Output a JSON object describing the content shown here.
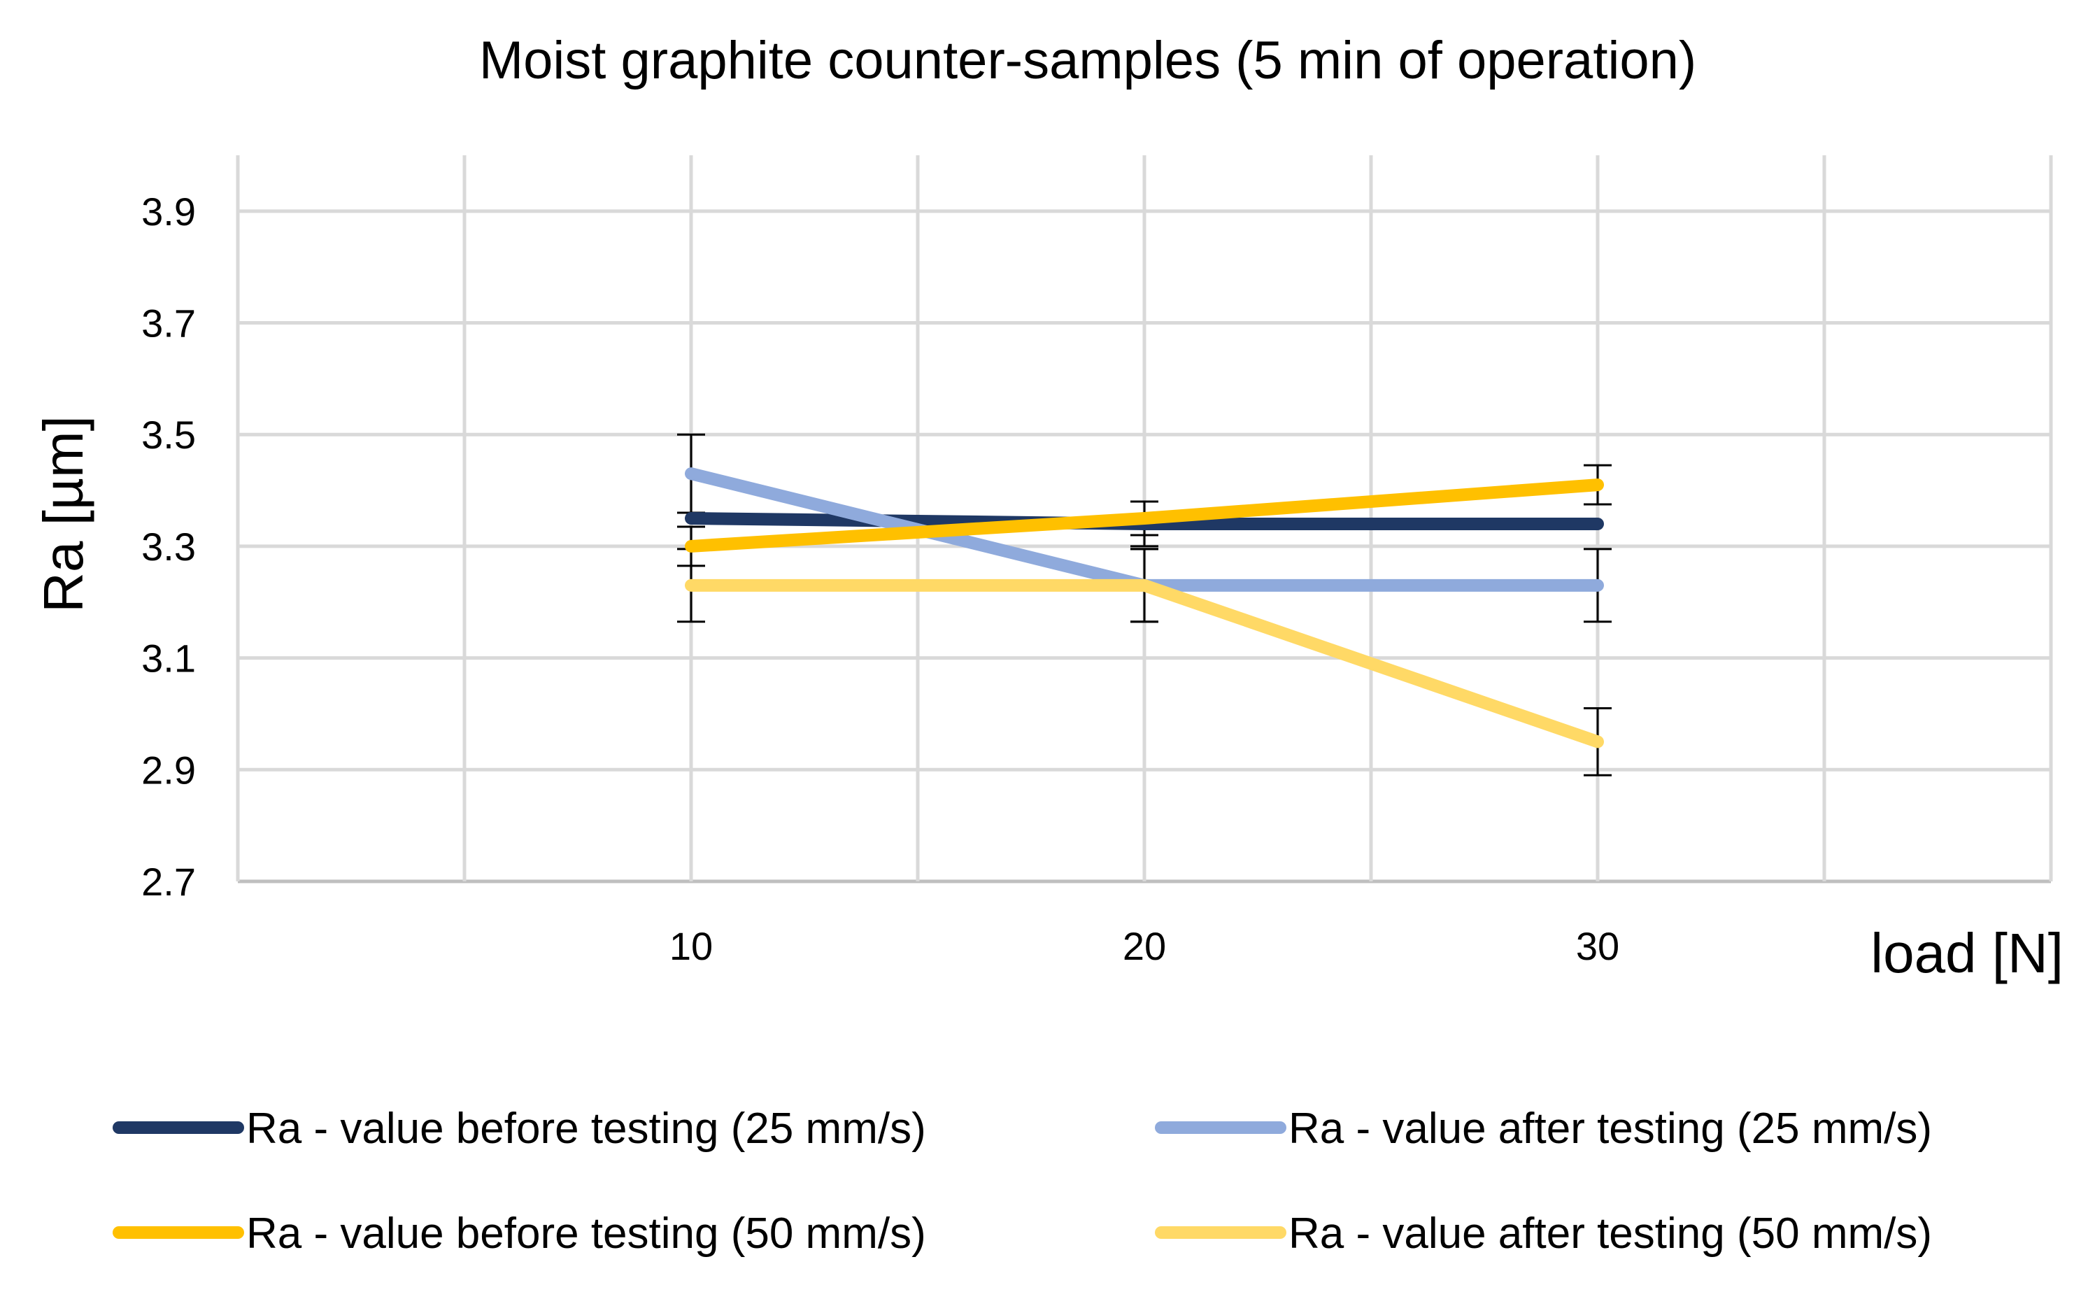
{
  "chart_data": {
    "type": "line",
    "title": "Moist graphite counter-samples (5 min of operation)",
    "xlabel": "load [N]",
    "ylabel": "Ra [µm]",
    "categories": [
      "10",
      "20",
      "30"
    ],
    "x_ticks": [
      "10",
      "20",
      "30"
    ],
    "ylim": [
      2.7,
      4.0
    ],
    "y_ticks": [
      2.7,
      2.9,
      3.1,
      3.3,
      3.5,
      3.7,
      3.9
    ],
    "y_tick_labels": [
      "2.7",
      "2.9",
      "3.1",
      "3.3",
      "3.5",
      "3.7",
      "3.9"
    ],
    "grid": true,
    "legend_position": "bottom",
    "series": [
      {
        "name": "Ra - value before testing (25 mm/s)",
        "color": "#1f3864",
        "values": [
          3.35,
          3.34,
          3.34
        ],
        "errors": [
          0.0,
          0.04,
          0.0
        ]
      },
      {
        "name": "Ra - value after testing (25 mm/s)",
        "color": "#8faadc",
        "values": [
          3.43,
          3.23,
          3.23
        ],
        "errors": [
          0.07,
          0.065,
          0.065
        ]
      },
      {
        "name": "Ra - value before testing (50 mm/s)",
        "color": "#ffc000",
        "values": [
          3.3,
          3.35,
          3.41
        ],
        "errors": [
          0.035,
          0.03,
          0.035
        ]
      },
      {
        "name": "Ra - value after testing (50 mm/s)",
        "color": "#ffd966",
        "values": [
          3.23,
          3.23,
          2.95
        ],
        "errors": [
          0.065,
          0.065,
          0.06
        ]
      }
    ]
  }
}
